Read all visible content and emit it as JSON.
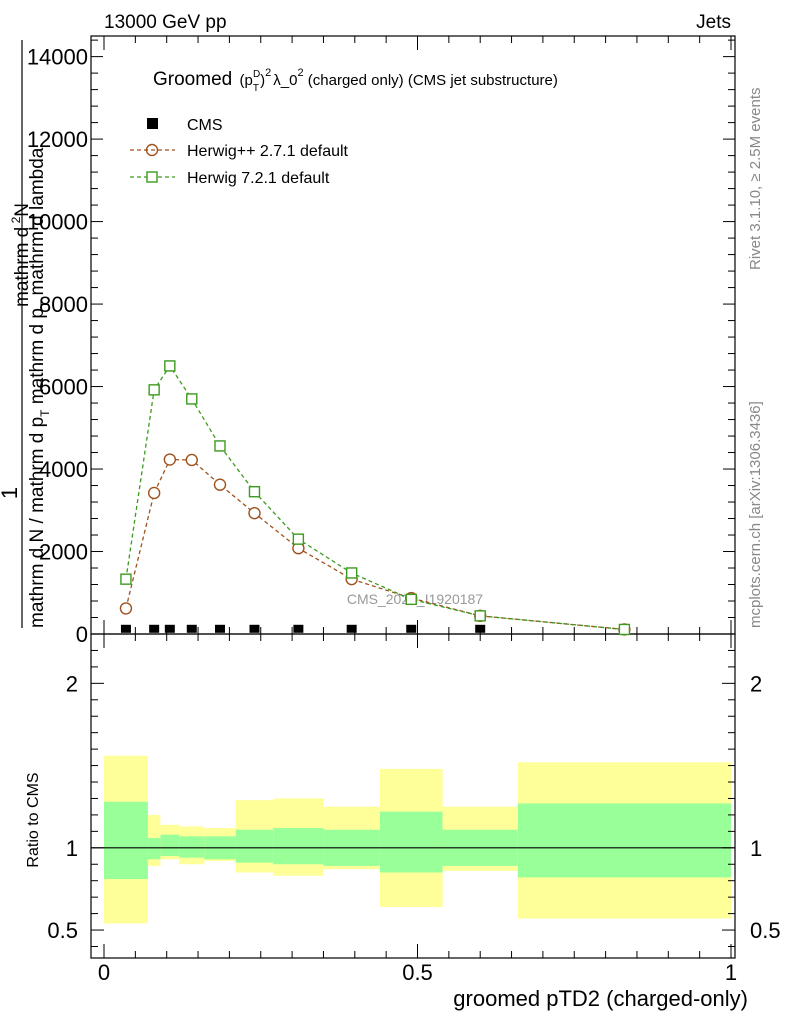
{
  "header": {
    "left": "13000 GeV pp",
    "right": "Jets"
  },
  "plot_title": {
    "prefix": "Groomed",
    "base": "(p",
    "sub": "T",
    "sup": "D",
    "close": ")",
    "power": "2",
    "suffix": "λ_0",
    "suffix_power": "2",
    "tail": "  (charged only) (CMS jet substructure)"
  },
  "side_labels": {
    "rivet": "Rivet 3.1.10, ≥ 2.5M events",
    "mcplots": "mcplots.cern.ch [arXiv:1306.3436]"
  },
  "watermark": "CMS_2021_I1920187",
  "y_axis_main": {
    "numer_one": "1",
    "numer_dn": "mathrm d",
    "numer_n": "N",
    "denom": "mathrm d N / mathrm d p",
    "denom_sub": "T",
    "denom_tail": " mathrm d p",
    "denom_sub2": "T",
    "denom_end": " mathrm d lambda"
  },
  "y_axis_ratio": "Ratio to CMS",
  "x_axis_label": "groomed pTD2 (charged-only)",
  "colors": {
    "herwigpp": "#a0521d",
    "herwig7": "#3c9a1e",
    "band_inner": "#99ff99",
    "band_outer": "#ffff99",
    "data": "#000000"
  },
  "chart_data": [
    {
      "type": "line",
      "title": "Groomed (p_T^D)^2 λ_0^2  (charged only) (CMS jet substructure)",
      "xlabel": "groomed pTD2 (charged-only)",
      "ylabel": "1 / mathrm d N / mathrm d p_T mathrm d p_T mathrm d lambda · mathrm d^2N",
      "xlim": [
        0,
        1
      ],
      "ylim": [
        0,
        14500
      ],
      "y_ticks": [
        0,
        2000,
        4000,
        6000,
        8000,
        10000,
        12000,
        14000
      ],
      "y_tick_labels": [
        "0",
        "2000",
        "4000",
        "6000",
        "8000",
        "10000",
        "12000",
        "14000"
      ],
      "x_ticks": [
        0,
        0.5,
        1
      ],
      "x_tick_labels": [
        "0",
        "0.5",
        "1"
      ],
      "legend_position": "top-left",
      "series": [
        {
          "name": "CMS",
          "marker": "filled-square",
          "x": [
            0.035,
            0.08,
            0.105,
            0.14,
            0.185,
            0.24,
            0.31,
            0.395,
            0.49,
            0.6,
            0.83
          ],
          "y": [
            5,
            5,
            5,
            5,
            5,
            5,
            5,
            5,
            5,
            5,
            5
          ]
        },
        {
          "name": "Herwig++ 2.7.1 default",
          "marker": "open-circle",
          "x": [
            0.035,
            0.08,
            0.105,
            0.14,
            0.185,
            0.24,
            0.31,
            0.395,
            0.49,
            0.6,
            0.83
          ],
          "y": [
            620,
            3420,
            4230,
            4220,
            3620,
            2930,
            2080,
            1330,
            870,
            440,
            110
          ]
        },
        {
          "name": "Herwig 7.2.1 default",
          "marker": "open-square",
          "x": [
            0.035,
            0.08,
            0.105,
            0.14,
            0.185,
            0.24,
            0.31,
            0.395,
            0.49,
            0.6,
            0.83
          ],
          "y": [
            1330,
            5920,
            6500,
            5700,
            4560,
            3450,
            2300,
            1480,
            840,
            440,
            110
          ]
        }
      ]
    },
    {
      "type": "area",
      "ylabel": "Ratio to CMS",
      "xlim": [
        0,
        1
      ],
      "ylim": [
        0.33,
        2.3
      ],
      "y_ticks": [
        0.5,
        1,
        2
      ],
      "y_tick_labels": [
        "0.5",
        "1",
        "2"
      ],
      "reference_line": 1,
      "bands": {
        "edges": [
          0,
          0.07,
          0.09,
          0.12,
          0.16,
          0.21,
          0.27,
          0.35,
          0.44,
          0.54,
          0.66,
          1.0
        ],
        "inner_low": [
          0.81,
          0.93,
          0.95,
          0.94,
          0.93,
          0.91,
          0.9,
          0.89,
          0.85,
          0.89,
          0.82
        ],
        "inner_high": [
          1.28,
          1.06,
          1.08,
          1.07,
          1.07,
          1.11,
          1.12,
          1.11,
          1.22,
          1.11,
          1.27
        ],
        "outer_low": [
          0.54,
          0.89,
          0.93,
          0.9,
          0.92,
          0.85,
          0.83,
          0.87,
          0.64,
          0.86,
          0.57
        ],
        "outer_high": [
          1.56,
          1.2,
          1.14,
          1.13,
          1.12,
          1.29,
          1.3,
          1.25,
          1.48,
          1.25,
          1.52
        ]
      }
    }
  ]
}
